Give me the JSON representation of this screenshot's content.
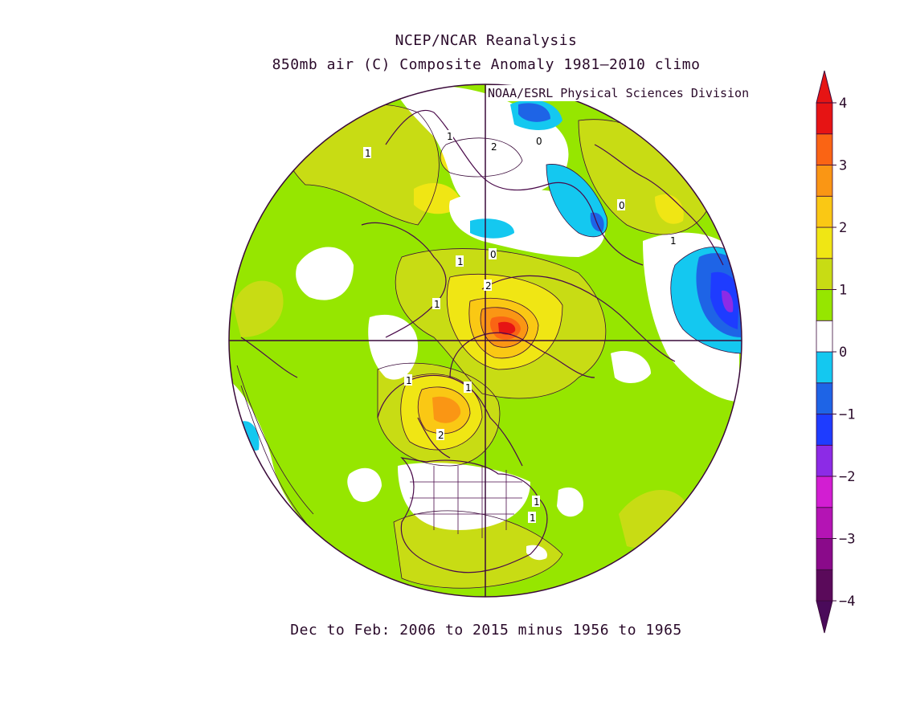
{
  "title": "NCEP/NCAR Reanalysis",
  "subtitle": "850mb air (C) Composite Anomaly 1981–2010 climo",
  "credit": "NOAA/ESRL Physical Sciences Division",
  "footer": "Dec to Feb: 2006 to 2015 minus 1956 to 1965",
  "colorbar": {
    "ticks": [
      "4",
      "3",
      "2",
      "1",
      "0",
      "−1",
      "−2",
      "−3",
      "−4"
    ],
    "colors": [
      "#5a0a5a",
      "#8a0a8a",
      "#b414b4",
      "#d21ed2",
      "#8c2be6",
      "#1e3cff",
      "#1e64e6",
      "#14c8f0",
      "#ffffff",
      "#96e600",
      "#c8dc14",
      "#f0e614",
      "#fac814",
      "#fa9614",
      "#fa6414",
      "#e61414"
    ]
  },
  "contour_labels": [
    "1",
    "2",
    "0",
    "1",
    "0",
    "1",
    "1",
    "2",
    "1",
    "0",
    "1",
    "2",
    "1",
    "1",
    "1"
  ]
}
